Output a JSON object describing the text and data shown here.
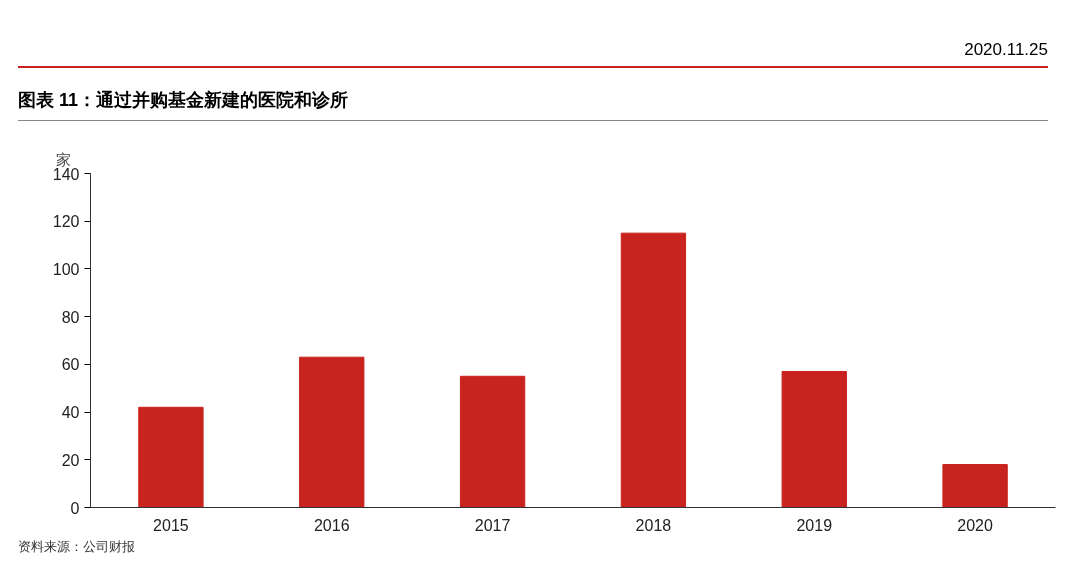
{
  "chart_data": {
    "type": "bar",
    "title": "图表 11：通过并购基金新建的医院和诊所",
    "ylabel": "家",
    "categories": [
      "2015",
      "2016",
      "2017",
      "2018",
      "2019",
      "2020"
    ],
    "values": [
      42,
      63,
      55,
      115,
      57,
      18
    ],
    "color": "#c8231e",
    "ylim": [
      0,
      140
    ],
    "yticks": [
      0,
      20,
      40,
      60,
      80,
      100,
      120,
      140
    ],
    "grid": false,
    "annotations": [
      "2020.11.25",
      "资料来源：公司财报"
    ]
  }
}
